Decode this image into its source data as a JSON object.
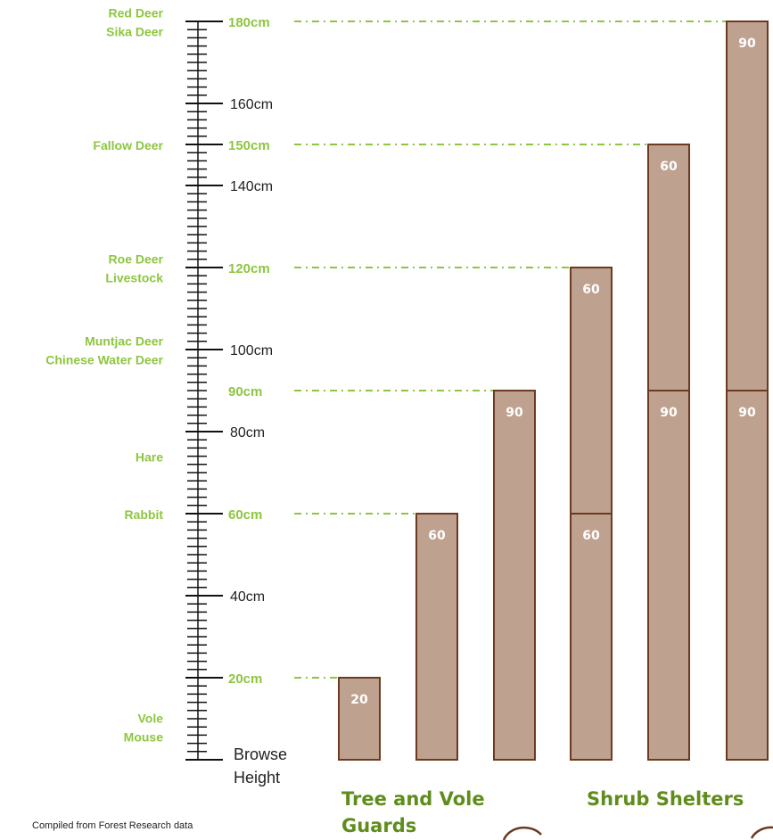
{
  "scale": {
    "unit_labels": [
      {
        "value": 160,
        "text": "160cm"
      },
      {
        "value": 140,
        "text": "140cm"
      },
      {
        "value": 100,
        "text": "100cm"
      },
      {
        "value": 80,
        "text": "80cm"
      },
      {
        "value": 40,
        "text": "40cm"
      }
    ],
    "browse_label": [
      "Browse",
      "Height"
    ],
    "max": 180
  },
  "thresholds": [
    {
      "value": 180,
      "text": "180cm",
      "animals": [
        "Red Deer",
        "Sika Deer"
      ]
    },
    {
      "value": 150,
      "text": "150cm",
      "animals": [
        "Fallow Deer"
      ]
    },
    {
      "value": 120,
      "text": "120cm",
      "animals": [
        "Roe Deer",
        "Livestock"
      ]
    },
    {
      "value": 90,
      "text": "90cm",
      "animals": []
    },
    {
      "value": 60,
      "text": "60cm",
      "animals": [
        "Rabbit"
      ]
    },
    {
      "value": 20,
      "text": "20cm",
      "animals": []
    }
  ],
  "free_animal_labels": [
    {
      "value": 100,
      "animals": [
        "Muntjac Deer",
        "Chinese Water  Deer"
      ]
    },
    {
      "value": 74,
      "animals": [
        "Hare"
      ]
    },
    {
      "value": 8,
      "animals": [
        "Vole",
        "Mouse"
      ]
    }
  ],
  "columns": [
    {
      "segments": [
        20
      ]
    },
    {
      "segments": [
        60
      ]
    },
    {
      "segments": [
        90
      ]
    },
    {
      "segments": [
        60,
        60
      ]
    },
    {
      "segments": [
        90,
        60
      ]
    },
    {
      "segments": [
        90,
        90
      ]
    }
  ],
  "group_labels": {
    "tree_guards": [
      "Tree and Vole",
      "Guards"
    ],
    "shrub_shelters": "Shrub Shelters"
  },
  "footnote": "Compiled from Forest Research data",
  "colors": {
    "accent_green": "#8dc63f",
    "heading_green": "#5f8d1c",
    "bar_fill": "#bfa190",
    "bar_stroke": "#6b3a1f"
  }
}
